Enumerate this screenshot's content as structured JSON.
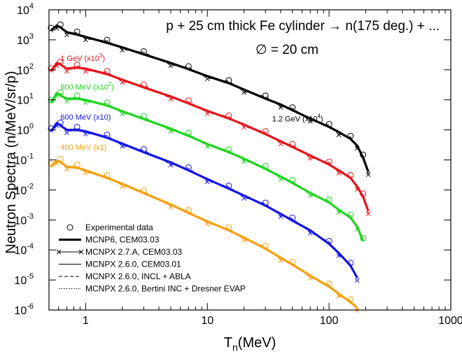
{
  "chart_data": {
    "type": "line",
    "title": "p + 25 cm thick Fe cylinder → n(175 deg.) + ...",
    "subtitle": "∅ = 20 cm",
    "xlabel": "T",
    "xlabel_sub": "n",
    "xlabel_unit": "(MeV)",
    "ylabel": "Neutron Spectra (n/MeV/sr/p)",
    "xscale": "log",
    "yscale": "log",
    "xlim": [
      0.5,
      1000
    ],
    "ylim": [
      1e-06,
      10000
    ],
    "x_ticks": [
      {
        "value": 1,
        "label": "1"
      },
      {
        "value": 10,
        "label": "10"
      },
      {
        "value": 100,
        "label": "100"
      },
      {
        "value": 1000,
        "label": "1000"
      }
    ],
    "y_ticks": [
      {
        "value": 1e-06,
        "base": "10",
        "exp": "-6"
      },
      {
        "value": 1e-05,
        "base": "10",
        "exp": "-5"
      },
      {
        "value": 0.0001,
        "base": "10",
        "exp": "-4"
      },
      {
        "value": 0.001,
        "base": "10",
        "exp": "-3"
      },
      {
        "value": 0.01,
        "base": "10",
        "exp": "-2"
      },
      {
        "value": 0.1,
        "base": "10",
        "exp": "-1"
      },
      {
        "value": 1,
        "base": "10",
        "exp": "0"
      },
      {
        "value": 10,
        "base": "10",
        "exp": "1"
      },
      {
        "value": 100,
        "base": "10",
        "exp": "2"
      },
      {
        "value": 1000,
        "base": "10",
        "exp": "3"
      },
      {
        "value": 10000,
        "base": "10",
        "exp": "4"
      }
    ],
    "series": [
      {
        "name": "1.2 GeV",
        "label": "1.2 GeV (x10",
        "label_exp": "4",
        "label_close": ")",
        "color": "#000000",
        "label_at": [
          34,
          1.9
        ],
        "x": [
          0.52,
          0.58,
          0.62,
          0.7,
          0.85,
          1,
          1.5,
          2,
          3,
          5,
          7,
          10,
          15,
          20,
          30,
          40,
          50,
          70,
          100,
          120,
          150,
          170,
          190,
          210
        ],
        "y": [
          2000,
          3000,
          2600,
          1800,
          1500,
          1250,
          800,
          560,
          330,
          170,
          105,
          62,
          36,
          22,
          11,
          7,
          4.5,
          2.4,
          1.25,
          0.85,
          0.5,
          0.3,
          0.12,
          0.04
        ]
      },
      {
        "name": "1 GeV",
        "label": "1 GeV (x10",
        "label_exp": "3",
        "label_close": ")",
        "color": "#e8141c",
        "label_at": [
          0.62,
          200
        ],
        "x": [
          0.52,
          0.58,
          0.62,
          0.7,
          0.85,
          1,
          1.5,
          2,
          3,
          5,
          7,
          10,
          15,
          20,
          30,
          40,
          50,
          70,
          100,
          120,
          150,
          170,
          190,
          210
        ],
        "y": [
          90,
          170,
          150,
          110,
          120,
          110,
          72,
          47,
          26,
          13,
          7.6,
          4.3,
          2.4,
          1.5,
          0.72,
          0.42,
          0.27,
          0.14,
          0.07,
          0.045,
          0.025,
          0.013,
          0.006,
          0.002
        ]
      },
      {
        "name": "800 MeV",
        "label": "800 MeV (x10",
        "label_exp": "2",
        "label_close": ")",
        "color": "#1ed51e",
        "label_at": [
          0.62,
          22
        ],
        "x": [
          0.52,
          0.58,
          0.62,
          0.7,
          0.85,
          1,
          1.5,
          2,
          3,
          5,
          7,
          10,
          15,
          20,
          30,
          40,
          50,
          70,
          100,
          120,
          150,
          170,
          190
        ],
        "y": [
          8,
          17,
          14,
          11,
          11,
          10,
          6.5,
          4.2,
          2.3,
          1.1,
          0.63,
          0.34,
          0.18,
          0.11,
          0.05,
          0.028,
          0.017,
          0.008,
          0.0038,
          0.0022,
          0.0012,
          0.0006,
          0.0002
        ]
      },
      {
        "name": "600 MeV",
        "label": "600 MeV (x10)",
        "label_exp": "",
        "label_close": "",
        "color": "#1414e8",
        "label_at": [
          0.62,
          2.2
        ],
        "x": [
          0.52,
          0.58,
          0.62,
          0.7,
          0.85,
          1,
          1.5,
          2,
          3,
          5,
          7,
          10,
          15,
          20,
          30,
          40,
          50,
          70,
          100,
          120,
          150,
          170
        ],
        "y": [
          0.9,
          1.7,
          1.4,
          1.0,
          1.0,
          0.9,
          0.55,
          0.35,
          0.18,
          0.083,
          0.045,
          0.023,
          0.011,
          0.0065,
          0.003,
          0.0016,
          0.00095,
          0.00045,
          0.00016,
          8e-05,
          3e-05,
          1.2e-05
        ]
      },
      {
        "name": "400 MeV",
        "label": "400 MeV (x1)",
        "label_exp": "",
        "label_close": "",
        "color": "#f5a00f",
        "label_at": [
          0.62,
          0.22
        ],
        "x": [
          0.52,
          0.58,
          0.62,
          0.7,
          0.85,
          1,
          1.5,
          2,
          3,
          5,
          7,
          10,
          15,
          20,
          30,
          40,
          50,
          70,
          100,
          120,
          150,
          170
        ],
        "y": [
          0.06,
          0.095,
          0.085,
          0.06,
          0.055,
          0.045,
          0.025,
          0.016,
          0.0078,
          0.0033,
          0.0017,
          0.0009,
          0.00045,
          0.00026,
          0.00011,
          5.5e-05,
          3.2e-05,
          1.4e-05,
          6e-06,
          3.5e-06,
          1.8e-06,
          1.2e-06
        ]
      }
    ],
    "legend": [
      {
        "label": "Experimental data",
        "style": "circle"
      },
      {
        "label": "MCNP6, CEM03.03",
        "style": "thick"
      },
      {
        "label": "MCNPX 2.7.A, CEM03.03",
        "style": "cross"
      },
      {
        "label": "MCNPX 2.6.0, CEM03.01",
        "style": "thin"
      },
      {
        "label": "MCNPX 2.6.0, INCL + ABLA",
        "style": "dashed"
      },
      {
        "label": "MCNPX 2.6.0, Bertini INC + Dresner EVAP",
        "style": "dotted"
      }
    ],
    "legend_position": "bottom-left"
  }
}
